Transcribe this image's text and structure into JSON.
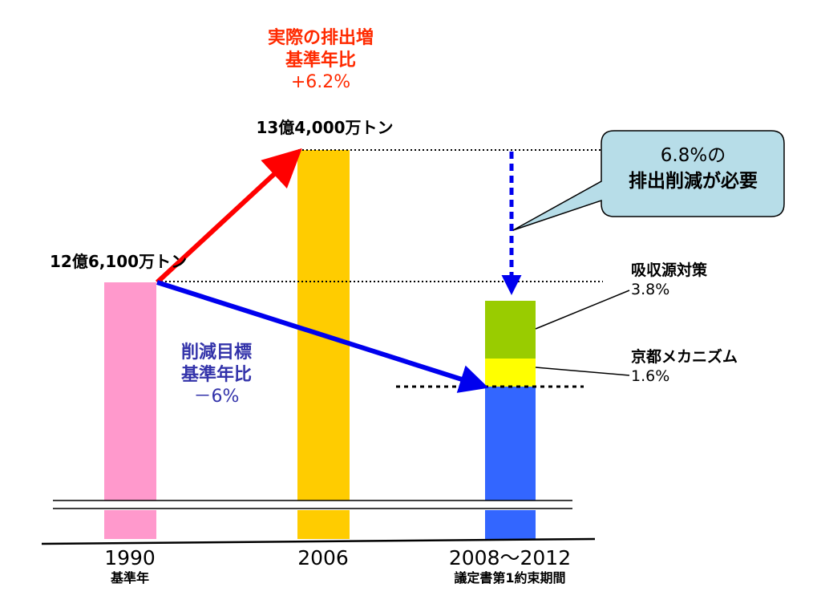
{
  "chart_data": {
    "type": "bar",
    "categories": [
      "1990",
      "2006",
      "2008〜2012"
    ],
    "category_sublabels": [
      "基準年",
      "",
      "議定書第1約束期間"
    ],
    "bars": [
      {
        "category": "1990",
        "label": "12億6,100万トン",
        "color": "#ff99cc"
      },
      {
        "category": "2006",
        "label": "13億4,000万トン",
        "color": "#ffcc00"
      }
    ],
    "stacked_2008_2012": [
      {
        "name": "",
        "color": "#3366ff"
      },
      {
        "name": "京都メカニズム",
        "value_label": "1.6%",
        "color": "#ffff00"
      },
      {
        "name": "吸収源対策",
        "value_label": "3.8%",
        "color": "#99cc00"
      }
    ],
    "annotations": {
      "actual_increase": [
        "実際の排出増",
        "基準年比",
        "+6.2%"
      ],
      "reduction_target": [
        "削減目標",
        "基準年比",
        "－6%"
      ],
      "callout": [
        "6.8%の",
        "排出削減が必要"
      ]
    },
    "axis_break": true
  }
}
